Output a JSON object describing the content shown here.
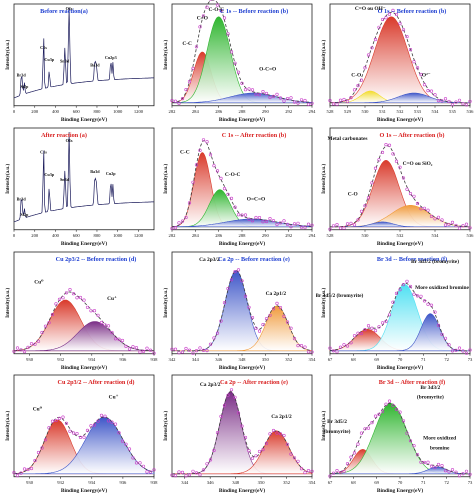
{
  "colors": {
    "red": "#d93a2b",
    "green": "#2fb52f",
    "blue": "#3e56c8",
    "purple": "#7a2e86",
    "orange": "#f09a3a",
    "cyan": "#4fe0f2",
    "yellow": "#f2dc2c",
    "points": "#c83cc8",
    "envelope": "#3b3b3b",
    "titleBlue": "#1f3fd1",
    "titleRed": "#d81e1e"
  },
  "chart_data": [
    {
      "id": "survey-before",
      "type": "line",
      "title": "Before reaction(a)",
      "title_color": "blue",
      "xlabel": "Binding Energy(eV)",
      "ylabel": "Intensity(a.u.)",
      "xlim": [
        0,
        1350
      ],
      "ylim": [
        0,
        1
      ],
      "xticks": [
        0,
        200,
        400,
        600,
        800,
        1000,
        1200
      ],
      "fill": "none",
      "labels": [
        {
          "text": "O1s",
          "x": 531,
          "y": 0.98
        },
        {
          "text": "C1s",
          "x": 285,
          "y": 0.58
        },
        {
          "text": "Cu3p",
          "x": 340,
          "y": 0.46
        },
        {
          "text": "Sn3d",
          "x": 487,
          "y": 0.44
        },
        {
          "text": "Ba3d",
          "x": 780,
          "y": 0.4
        },
        {
          "text": "Cu2p3",
          "x": 933,
          "y": 0.48
        },
        {
          "text": "Si2p",
          "x": 100,
          "y": 0.18
        },
        {
          "text": "Br3d",
          "x": 69,
          "y": 0.3
        }
      ]
    },
    {
      "id": "c1s-before",
      "type": "area",
      "title": "C 1s -- Before reaction (b)",
      "title_color": "blue",
      "xlabel": "Binding Energy(eV)",
      "ylabel": "Intensity(a.u.)",
      "xlim": [
        282,
        294
      ],
      "ylim": [
        0,
        1
      ],
      "xticks": [
        282,
        284,
        286,
        288,
        290,
        292,
        294
      ],
      "peaks": [
        {
          "center": 284.6,
          "height": 0.52,
          "width": 0.75,
          "color": "red"
        },
        {
          "center": 286.0,
          "height": 0.88,
          "width": 1.0,
          "color": "green"
        },
        {
          "center": 289.0,
          "height": 0.1,
          "width": 2.0,
          "color": "blue"
        }
      ],
      "labels": [
        {
          "text": "C-C",
          "x": 283.3,
          "y": 0.62
        },
        {
          "text": "C-O-C",
          "x": 285.8,
          "y": 0.97
        },
        {
          "text": "C=O",
          "x": 284.6,
          "y": 0.88
        },
        {
          "text": "O-C=O",
          "x": 290.2,
          "y": 0.36
        }
      ]
    },
    {
      "id": "o1s-before",
      "type": "area",
      "title": "O 1s -- Before reaction (b)",
      "title_color": "blue",
      "xlabel": "Binding Energy(eV)",
      "ylabel": "Intensity(a.u.)",
      "xlim": [
        528,
        536
      ],
      "ylim": [
        0,
        1
      ],
      "xticks": [
        528,
        529,
        530,
        531,
        532,
        533,
        534,
        535,
        536
      ],
      "peaks": [
        {
          "center": 531.5,
          "height": 0.88,
          "width": 0.95,
          "color": "red"
        },
        {
          "center": 530.3,
          "height": 0.12,
          "width": 0.55,
          "color": "yellow"
        },
        {
          "center": 532.8,
          "height": 0.1,
          "width": 0.9,
          "color": "blue"
        }
      ],
      "labels": [
        {
          "text": "C=O ou OH⁻",
          "x": 530.3,
          "y": 0.98
        },
        {
          "text": "C-O",
          "x": 529.5,
          "y": 0.3
        },
        {
          "text": "O²⁻",
          "x": 533.5,
          "y": 0.3
        }
      ]
    },
    {
      "id": "survey-after",
      "type": "line",
      "title": "After reaction (a)",
      "title_color": "red",
      "xlabel": "Binding Energy(eV)",
      "ylabel": "Intensity(a.u.)",
      "xlim": [
        0,
        1350
      ],
      "ylim": [
        0,
        1
      ],
      "xticks": [
        0,
        200,
        400,
        600,
        800,
        1000,
        1200
      ],
      "fill": "none",
      "labels": [
        {
          "text": "O1s",
          "x": 531,
          "y": 0.9
        },
        {
          "text": "C1s",
          "x": 285,
          "y": 0.78
        },
        {
          "text": "Cu3p",
          "x": 340,
          "y": 0.55
        },
        {
          "text": "Sn3d",
          "x": 487,
          "y": 0.5
        },
        {
          "text": "Ba3d",
          "x": 780,
          "y": 0.58
        },
        {
          "text": "Cu2p",
          "x": 933,
          "y": 0.56
        },
        {
          "text": "Br3d",
          "x": 69,
          "y": 0.3
        },
        {
          "text": "Si2p",
          "x": 100,
          "y": 0.14
        }
      ]
    },
    {
      "id": "c1s-after",
      "type": "area",
      "title": "C 1s -- After reaction (b)",
      "title_color": "red",
      "xlabel": "Binding Energy(eV)",
      "ylabel": "Intensity(a.u.)",
      "xlim": [
        282,
        294
      ],
      "ylim": [
        0,
        1
      ],
      "xticks": [
        282,
        284,
        286,
        288,
        290,
        292,
        294
      ],
      "peaks": [
        {
          "center": 284.6,
          "height": 0.76,
          "width": 0.72,
          "color": "red"
        },
        {
          "center": 286.1,
          "height": 0.38,
          "width": 0.9,
          "color": "green"
        },
        {
          "center": 288.8,
          "height": 0.08,
          "width": 2.2,
          "color": "blue"
        }
      ],
      "labels": [
        {
          "text": "C-C",
          "x": 283.1,
          "y": 0.78
        },
        {
          "text": "C-O-C",
          "x": 287.2,
          "y": 0.55
        },
        {
          "text": "O=C=O",
          "x": 289.2,
          "y": 0.3
        }
      ]
    },
    {
      "id": "o1s-after",
      "type": "area",
      "title": "O 1s -- After reaction (b)",
      "title_color": "red",
      "xlabel": "Binding Energy(eV)",
      "ylabel": "Intensity(a.u.)",
      "xlim": [
        528,
        536
      ],
      "ylim": [
        0,
        1
      ],
      "xticks": [
        528,
        530,
        532,
        534,
        536
      ],
      "peaks": [
        {
          "center": 531.2,
          "height": 0.68,
          "width": 0.75,
          "color": "red"
        },
        {
          "center": 532.6,
          "height": 0.22,
          "width": 1.1,
          "color": "orange"
        },
        {
          "center": 531.0,
          "height": 0.05,
          "width": 0.6,
          "color": "blue"
        }
      ],
      "labels": [
        {
          "text": "Metal carbonates",
          "x": 529.0,
          "y": 0.92
        },
        {
          "text": "C=O ou SiO₂",
          "x": 533.0,
          "y": 0.66
        },
        {
          "text": "C-O",
          "x": 529.3,
          "y": 0.35
        }
      ]
    },
    {
      "id": "cu2p-before",
      "type": "area",
      "title": "Cu 2p3/2 -- Before reaction (d)",
      "title_color": "blue",
      "xlabel": "Binding Energy(eV)",
      "ylabel": "Intensity(a.u.)",
      "xlim": [
        929,
        938
      ],
      "ylim": [
        0,
        1
      ],
      "xticks": [
        930,
        932,
        934,
        936,
        938
      ],
      "peaks": [
        {
          "center": 932.3,
          "height": 0.52,
          "width": 1.0,
          "color": "red"
        },
        {
          "center": 934.2,
          "height": 0.3,
          "width": 1.1,
          "color": "purple"
        }
      ],
      "labels": [
        {
          "text": "Cu⁰",
          "x": 930.6,
          "y": 0.72
        },
        {
          "text": "Cu⁺",
          "x": 935.3,
          "y": 0.55
        }
      ]
    },
    {
      "id": "ca2p-before",
      "type": "area",
      "title": "Ca 2p -- Before reaction (e)",
      "title_color": "blue",
      "xlabel": "Binding Energy(eV)",
      "ylabel": "Intensity(a.u.)",
      "xlim": [
        342,
        354
      ],
      "ylim": [
        0,
        1
      ],
      "xticks": [
        342,
        344,
        346,
        348,
        350,
        352,
        354
      ],
      "peaks": [
        {
          "center": 347.5,
          "height": 0.82,
          "width": 0.95,
          "color": "blue"
        },
        {
          "center": 351.0,
          "height": 0.46,
          "width": 0.95,
          "color": "orange"
        }
      ],
      "labels": [
        {
          "text": "Ca 2p3/2",
          "x": 345.2,
          "y": 0.95
        },
        {
          "text": "Ca 2p1/2",
          "x": 350.9,
          "y": 0.6
        }
      ]
    },
    {
      "id": "br3d-before",
      "type": "area",
      "title": "Br 3d -- Before reaction (f)",
      "title_color": "blue",
      "xlabel": "Binding Energy(eV)",
      "ylabel": "Intensity(a.u.)",
      "xlim": [
        67,
        73
      ],
      "ylim": [
        0,
        1
      ],
      "xticks": [
        67,
        68,
        69,
        70,
        71,
        72,
        73
      ],
      "peaks": [
        {
          "center": 68.6,
          "height": 0.22,
          "width": 0.55,
          "color": "red"
        },
        {
          "center": 70.2,
          "height": 0.68,
          "width": 0.55,
          "color": "cyan"
        },
        {
          "center": 71.3,
          "height": 0.38,
          "width": 0.4,
          "color": "blue"
        }
      ],
      "labels": [
        {
          "text": "Br 3d5/2 (bromyrite)",
          "x": 67.4,
          "y": 0.58
        },
        {
          "text": "Br 3d3/2 (bromyrite)",
          "x": 71.5,
          "y": 0.93
        },
        {
          "text": "More oxidized bromine",
          "x": 71.8,
          "y": 0.66
        }
      ]
    },
    {
      "id": "cu2p-after",
      "type": "area",
      "title": "Cu 2p3/2 -- After reaction (d)",
      "title_color": "red",
      "xlabel": "Binding Energy(eV)",
      "ylabel": "Intensity(a.u.)",
      "xlim": [
        929,
        938
      ],
      "ylim": [
        0,
        1
      ],
      "xticks": [
        930,
        932,
        934,
        936,
        938
      ],
      "peaks": [
        {
          "center": 931.8,
          "height": 0.55,
          "width": 0.85,
          "color": "red"
        },
        {
          "center": 934.8,
          "height": 0.58,
          "width": 1.2,
          "color": "blue"
        }
      ],
      "labels": [
        {
          "text": "Cu⁰",
          "x": 930.5,
          "y": 0.68
        },
        {
          "text": "Cu⁺",
          "x": 935.4,
          "y": 0.8
        }
      ]
    },
    {
      "id": "ca2p-after",
      "type": "area",
      "title": "Ca 2p -- After reaction (e)",
      "title_color": "red",
      "xlabel": "Binding Energy(eV)",
      "ylabel": "Intensity(a.u.)",
      "xlim": [
        343,
        354
      ],
      "ylim": [
        0,
        1
      ],
      "xticks": [
        344,
        346,
        348,
        350,
        352,
        354
      ],
      "peaks": [
        {
          "center": 347.6,
          "height": 0.84,
          "width": 0.85,
          "color": "purple"
        },
        {
          "center": 351.2,
          "height": 0.44,
          "width": 1.0,
          "color": "red"
        }
      ],
      "labels": [
        {
          "text": "Ca 2p3/2",
          "x": 346.0,
          "y": 0.93
        },
        {
          "text": "Ca 2p1/2",
          "x": 351.6,
          "y": 0.6
        }
      ]
    },
    {
      "id": "br3d-after",
      "type": "area",
      "title": "Br 3d -- After reaction (f)",
      "title_color": "red",
      "xlabel": "Binding Energy(eV)",
      "ylabel": "Intensity(a.u.)",
      "xlim": [
        67,
        73
      ],
      "ylim": [
        0,
        1
      ],
      "xticks": [
        67,
        68,
        69,
        70,
        71,
        72,
        73
      ],
      "peaks": [
        {
          "center": 68.4,
          "height": 0.25,
          "width": 0.4,
          "color": "red"
        },
        {
          "center": 69.6,
          "height": 0.72,
          "width": 0.7,
          "color": "green"
        },
        {
          "center": 71.6,
          "height": 0.07,
          "width": 0.4,
          "color": "blue"
        }
      ],
      "labels": [
        {
          "text": "Br 3d3/2",
          "x": 71.3,
          "y": 0.9
        },
        {
          "text": "(bromyrite)",
          "x": 71.3,
          "y": 0.8
        },
        {
          "text": "Br 3d5/2",
          "x": 67.3,
          "y": 0.55
        },
        {
          "text": "(bromyrite)",
          "x": 67.3,
          "y": 0.45
        },
        {
          "text": "More oxidized",
          "x": 71.7,
          "y": 0.38
        },
        {
          "text": "bromine",
          "x": 71.7,
          "y": 0.28
        }
      ]
    }
  ]
}
